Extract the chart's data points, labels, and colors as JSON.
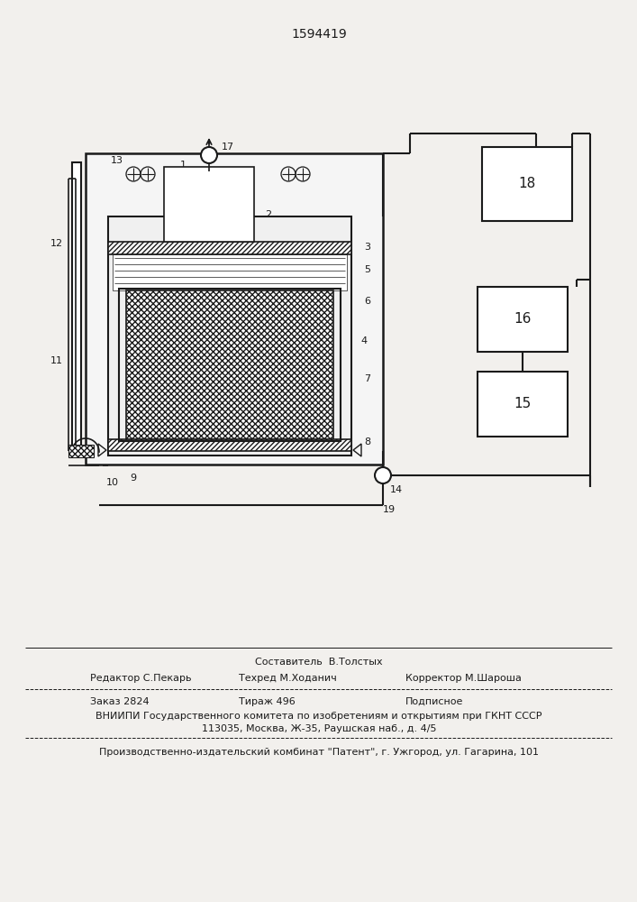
{
  "patent_number": "1594419",
  "bg_color": "#f2f0ed",
  "line_color": "#1a1a1a",
  "text_color": "#1a1a1a",
  "footer_sestavitel": "Составитель  В.Толстых",
  "footer_line1_left": "Редактор С.Пекарь",
  "footer_line1_mid": "Техред М.Ходанич",
  "footer_line1_right": "Корректор М.Шароша",
  "footer_line2_left": "Заказ 2824",
  "footer_line2_mid": "Тираж 496",
  "footer_line2_right": "Подписное",
  "footer_line3": "ВНИИПИ Государственного комитета по изобретениям и открытиям при ГКНТ СССР",
  "footer_line4": "113035, Москва, Ж-35, Раушская наб., д. 4/5",
  "footer_line5": "Производственно-издательский комбинат \"Патент\", г. Ужгород, ул. Гагарина, 101"
}
